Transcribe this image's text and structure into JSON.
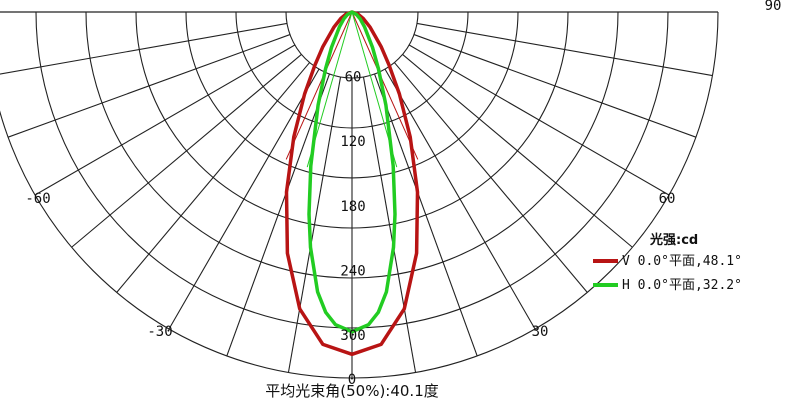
{
  "chart_data": {
    "type": "polar",
    "units_label": "光强:cd",
    "radial_ticks": [
      60,
      120,
      180,
      240,
      300
    ],
    "radial_max": 340,
    "angle_ticks": [
      {
        "angle": -60,
        "label": "-60"
      },
      {
        "angle": -30,
        "label": "-30"
      },
      {
        "angle": 0,
        "label": "0"
      },
      {
        "angle": 30,
        "label": "30"
      },
      {
        "angle": 60,
        "label": "60"
      },
      {
        "angle": 90,
        "label": "90"
      }
    ],
    "series": [
      {
        "name": "V 0.0°平面,48.1°",
        "color": "#b81414",
        "beam_angle": 48.1,
        "angles": [
          -90,
          -70,
          -60,
          -50,
          -40,
          -35,
          -30,
          -25,
          -20,
          -15,
          -10,
          -5,
          0,
          5,
          10,
          15,
          20,
          25,
          30,
          35,
          40,
          50,
          60,
          70,
          90
        ],
        "values": [
          0,
          6,
          12,
          22,
          42,
          60,
          88,
          128,
          178,
          232,
          280,
          310,
          318,
          310,
          280,
          232,
          178,
          128,
          88,
          60,
          42,
          22,
          12,
          6,
          0
        ]
      },
      {
        "name": "H 0.0°平面,32.2°",
        "color": "#22cc22",
        "beam_angle": 32.2,
        "angles": [
          -90,
          -60,
          -50,
          -40,
          -30,
          -25,
          -20,
          -15,
          -12,
          -10,
          -7,
          -5,
          -3,
          0,
          3,
          5,
          7,
          10,
          12,
          15,
          20,
          25,
          30,
          40,
          50,
          60,
          90
        ],
        "values": [
          0,
          5,
          10,
          18,
          38,
          58,
          92,
          148,
          192,
          222,
          262,
          280,
          291,
          297,
          291,
          280,
          262,
          222,
          192,
          148,
          92,
          58,
          38,
          18,
          10,
          5,
          0
        ]
      }
    ]
  },
  "footer": {
    "label": "平均光束角(50%):40.1度"
  }
}
